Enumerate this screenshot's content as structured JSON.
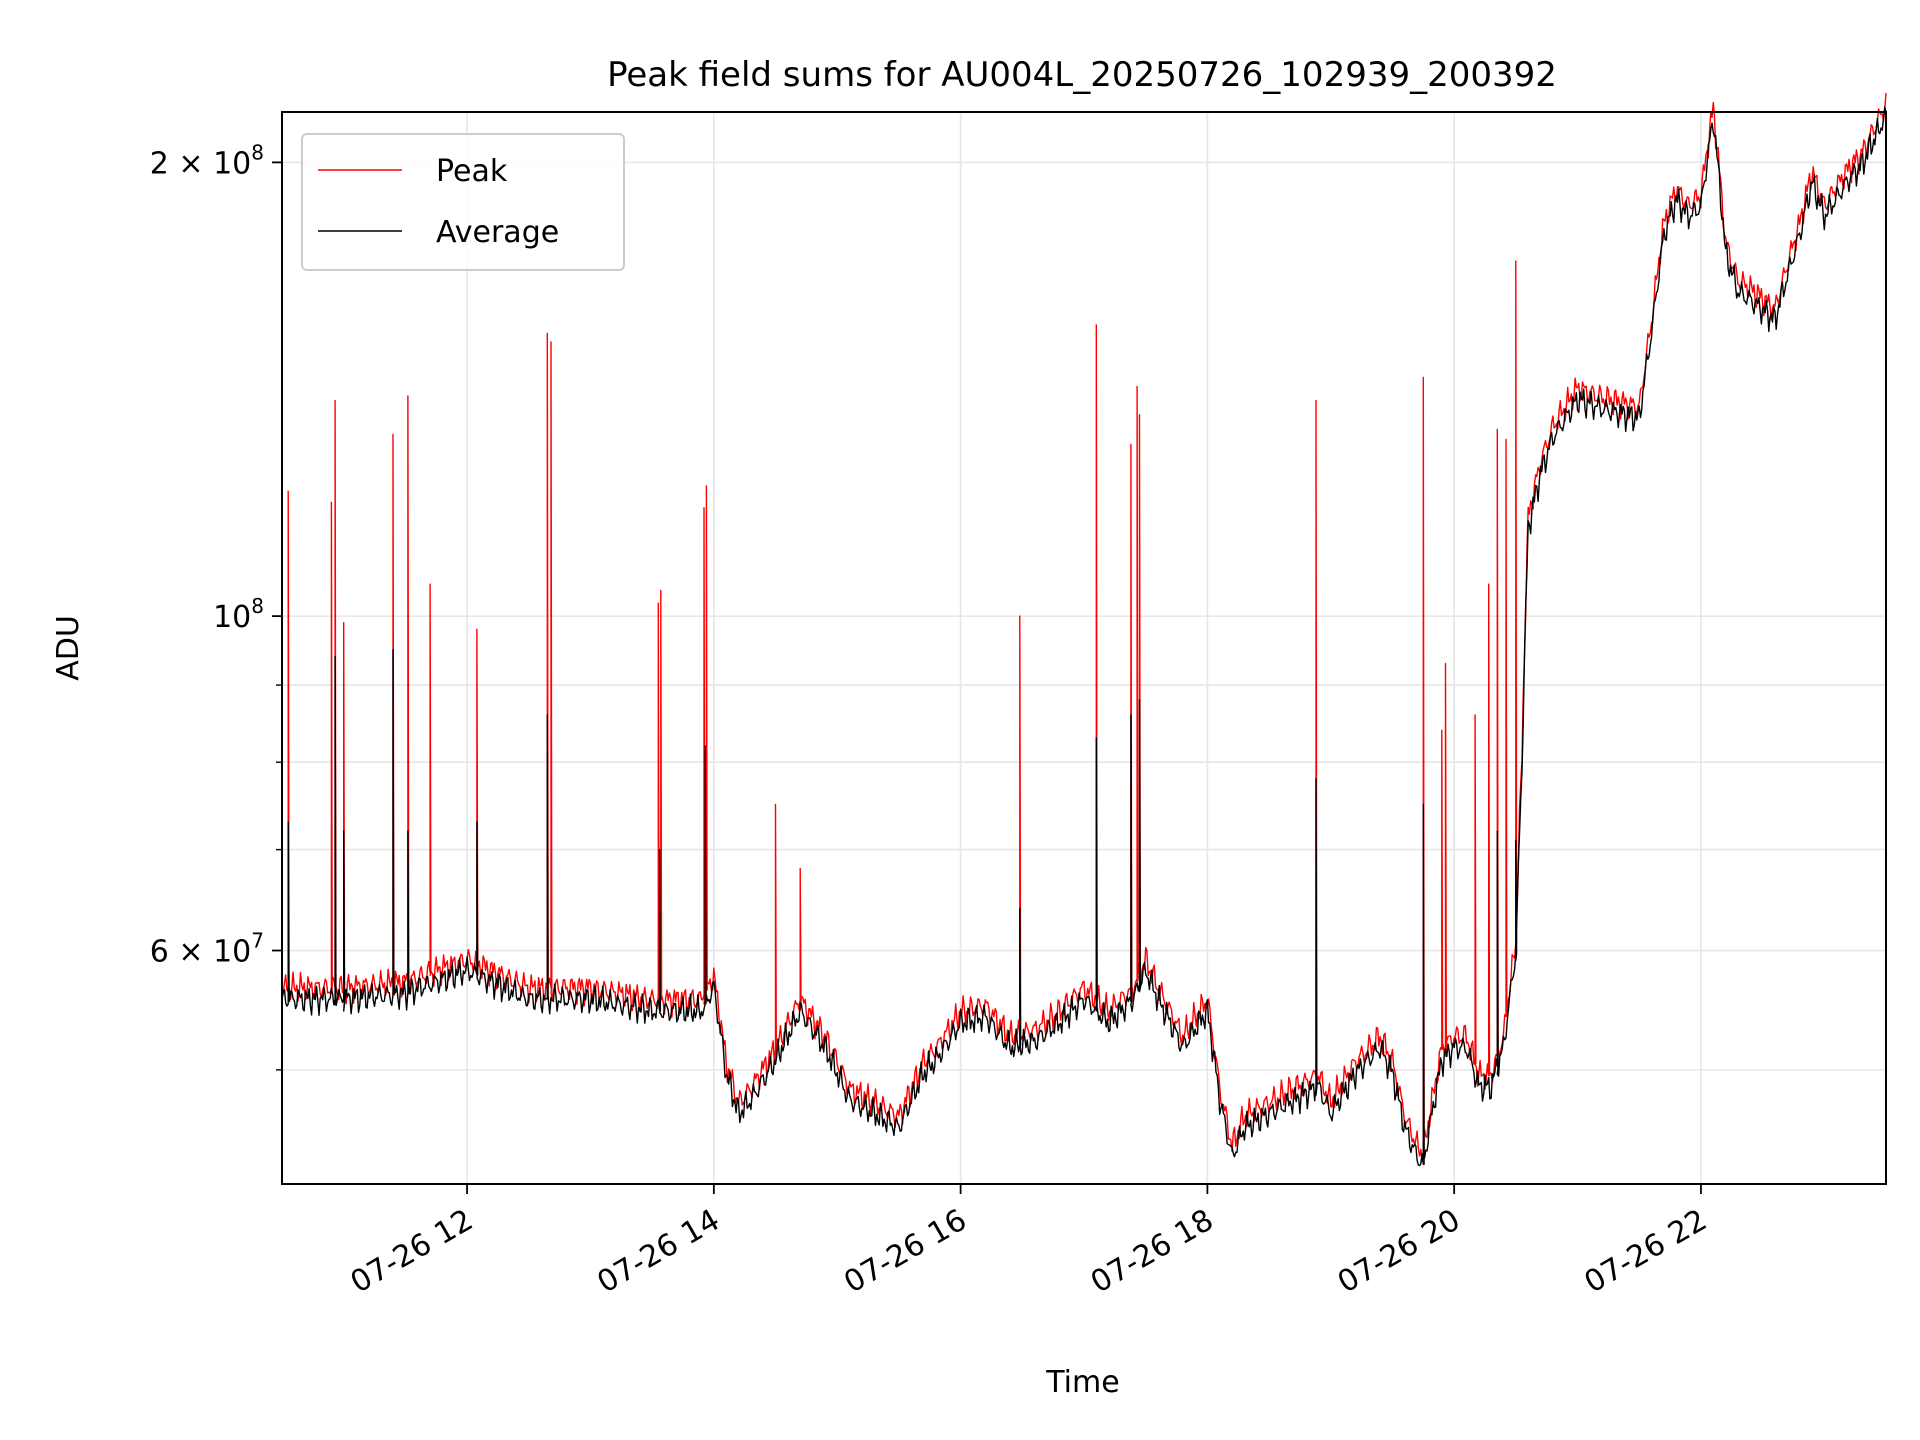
{
  "chart_data": {
    "type": "line",
    "title": "Peak field sums for AU004L_20250726_102939_200392",
    "xlabel": "Time",
    "ylabel": "ADU",
    "x_axis": {
      "kind": "datetime",
      "date": "07-26",
      "range_hours": [
        10.5,
        23.5
      ],
      "ticks": [
        {
          "hour": 12,
          "label": "07-26 12"
        },
        {
          "hour": 14,
          "label": "07-26 14"
        },
        {
          "hour": 16,
          "label": "07-26 16"
        },
        {
          "hour": 18,
          "label": "07-26 18"
        },
        {
          "hour": 20,
          "label": "07-26 20"
        },
        {
          "hour": 22,
          "label": "07-26 22"
        }
      ]
    },
    "y_axis": {
      "scale": "log",
      "range": [
        42000000,
        216000000
      ],
      "ticks": [
        {
          "value": 60000000,
          "base": "6 × 10",
          "exp": "7"
        },
        {
          "value": 100000000,
          "base": "10",
          "exp": "8"
        },
        {
          "value": 200000000,
          "base": "2 × 10",
          "exp": "8"
        }
      ],
      "minor_ticks": [
        50000000,
        70000000,
        80000000,
        90000000
      ]
    },
    "grid": true,
    "legend": {
      "placement": "top-left",
      "entries": [
        {
          "label": "Peak",
          "color": "#ff0000"
        },
        {
          "label": "Average",
          "color": "#000000"
        }
      ]
    },
    "baseline": {
      "x_hours": [
        10.5,
        11.0,
        11.5,
        12.0,
        12.5,
        13.0,
        13.5,
        13.9,
        14.0,
        14.1,
        14.2,
        14.3,
        14.5,
        14.7,
        14.9,
        15.1,
        15.3,
        15.5,
        15.7,
        15.8,
        16.0,
        16.2,
        16.4,
        16.6,
        16.8,
        17.0,
        17.2,
        17.4,
        17.5,
        17.6,
        17.8,
        18.0,
        18.1,
        18.2,
        18.3,
        18.5,
        18.7,
        18.9,
        19.0,
        19.2,
        19.4,
        19.5,
        19.6,
        19.7,
        19.75,
        19.8,
        19.9,
        20.0,
        20.1,
        20.2,
        20.3,
        20.4,
        20.5,
        20.55,
        20.6,
        20.7,
        20.8,
        21.0,
        21.2,
        21.5,
        21.6,
        21.7,
        21.8,
        21.9,
        22.0,
        22.1,
        22.2,
        22.3,
        22.4,
        22.6,
        22.8,
        22.9,
        23.0,
        23.2,
        23.3,
        23.5
      ],
      "values": [
        56000000,
        56000000,
        56500000,
        58500000,
        56000000,
        56000000,
        55000000,
        55000000,
        57000000,
        50000000,
        47000000,
        48000000,
        51000000,
        55000000,
        52000000,
        48000000,
        47000000,
        46000000,
        50000000,
        51000000,
        54000000,
        54500000,
        52000000,
        52500000,
        54000000,
        56000000,
        54000000,
        56000000,
        58500000,
        56000000,
        52000000,
        55000000,
        48000000,
        44000000,
        46000000,
        47000000,
        48000000,
        49000000,
        47000000,
        50000000,
        52000000,
        50000000,
        46000000,
        44000000,
        43500000,
        46000000,
        51000000,
        52000000,
        52000000,
        49000000,
        49000000,
        52000000,
        60000000,
        80000000,
        115000000,
        125000000,
        132000000,
        140000000,
        138000000,
        136000000,
        155000000,
        180000000,
        190000000,
        185000000,
        188000000,
        215000000,
        175000000,
        165000000,
        163000000,
        158000000,
        180000000,
        195000000,
        185000000,
        196000000,
        200000000,
        216000000
      ]
    },
    "series": [
      {
        "name": "Peak",
        "spikes": [
          {
            "hour": 10.55,
            "value": 121000000
          },
          {
            "hour": 10.9,
            "value": 119000000
          },
          {
            "hour": 10.93,
            "value": 139000000
          },
          {
            "hour": 11.0,
            "value": 99000000
          },
          {
            "hour": 11.4,
            "value": 132000000
          },
          {
            "hour": 11.52,
            "value": 140000000
          },
          {
            "hour": 11.7,
            "value": 105000000
          },
          {
            "hour": 12.08,
            "value": 98000000
          },
          {
            "hour": 12.65,
            "value": 154000000
          },
          {
            "hour": 12.68,
            "value": 152000000
          },
          {
            "hour": 13.55,
            "value": 102000000
          },
          {
            "hour": 13.57,
            "value": 104000000
          },
          {
            "hour": 13.92,
            "value": 118000000
          },
          {
            "hour": 13.94,
            "value": 122000000
          },
          {
            "hour": 14.5,
            "value": 75000000
          },
          {
            "hour": 14.7,
            "value": 68000000
          },
          {
            "hour": 16.48,
            "value": 100000000
          },
          {
            "hour": 17.1,
            "value": 156000000
          },
          {
            "hour": 17.38,
            "value": 130000000
          },
          {
            "hour": 17.43,
            "value": 142000000
          },
          {
            "hour": 17.45,
            "value": 136000000
          },
          {
            "hour": 18.88,
            "value": 139000000
          },
          {
            "hour": 19.75,
            "value": 144000000
          },
          {
            "hour": 19.9,
            "value": 84000000
          },
          {
            "hour": 19.93,
            "value": 93000000
          },
          {
            "hour": 20.17,
            "value": 86000000
          },
          {
            "hour": 20.28,
            "value": 105000000
          },
          {
            "hour": 20.35,
            "value": 133000000
          },
          {
            "hour": 20.42,
            "value": 131000000
          },
          {
            "hour": 20.5,
            "value": 172000000
          }
        ]
      },
      {
        "name": "Average",
        "spikes": [
          {
            "hour": 10.55,
            "value": 73000000
          },
          {
            "hour": 10.93,
            "value": 94000000
          },
          {
            "hour": 11.0,
            "value": 72000000
          },
          {
            "hour": 11.4,
            "value": 95000000
          },
          {
            "hour": 11.52,
            "value": 72000000
          },
          {
            "hour": 12.08,
            "value": 73000000
          },
          {
            "hour": 12.65,
            "value": 86000000
          },
          {
            "hour": 13.56,
            "value": 70000000
          },
          {
            "hour": 13.93,
            "value": 82000000
          },
          {
            "hour": 16.48,
            "value": 64000000
          },
          {
            "hour": 17.1,
            "value": 83000000
          },
          {
            "hour": 17.38,
            "value": 86000000
          },
          {
            "hour": 17.45,
            "value": 88000000
          },
          {
            "hour": 18.88,
            "value": 78000000
          },
          {
            "hour": 19.75,
            "value": 75000000
          },
          {
            "hour": 20.35,
            "value": 72000000
          },
          {
            "hour": 20.5,
            "value": 71000000
          }
        ]
      }
    ]
  }
}
